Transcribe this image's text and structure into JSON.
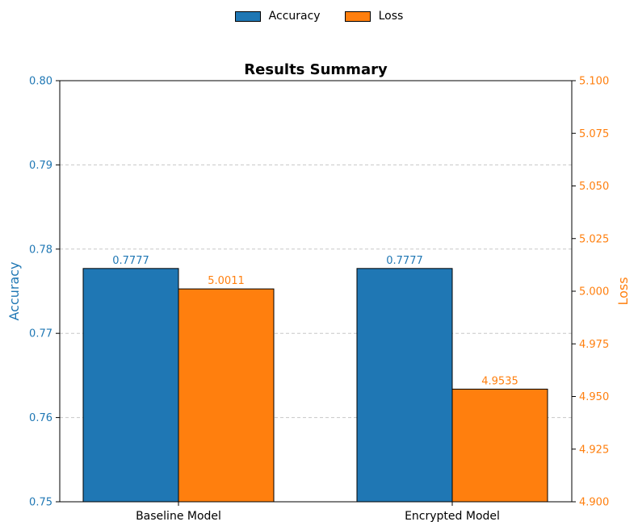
{
  "chart_data": {
    "type": "bar",
    "title": "Results Summary",
    "categories": [
      "Baseline Model",
      "Encrypted Model"
    ],
    "series": [
      {
        "name": "Accuracy",
        "axis": "left",
        "color": "#1f77b4",
        "values": [
          0.7777,
          0.7777
        ],
        "labels": [
          "0.7777",
          "0.7777"
        ]
      },
      {
        "name": "Loss",
        "axis": "right",
        "color": "#ff7f0e",
        "values": [
          5.0011,
          4.9535
        ],
        "labels": [
          "5.0011",
          "4.9535"
        ]
      }
    ],
    "y_left": {
      "label": "Accuracy",
      "lim": [
        0.75,
        0.8
      ],
      "ticks": [
        "0.75",
        "0.76",
        "0.77",
        "0.78",
        "0.79",
        "0.80"
      ],
      "color": "#1f77b4"
    },
    "y_right": {
      "label": "Loss",
      "lim": [
        4.9,
        5.1
      ],
      "ticks": [
        "4.900",
        "4.925",
        "4.950",
        "4.975",
        "5.000",
        "5.025",
        "5.050",
        "5.075",
        "5.100"
      ],
      "color": "#ff7f0e"
    },
    "grid": "horizontal dashed",
    "legend_position": "top-center"
  }
}
